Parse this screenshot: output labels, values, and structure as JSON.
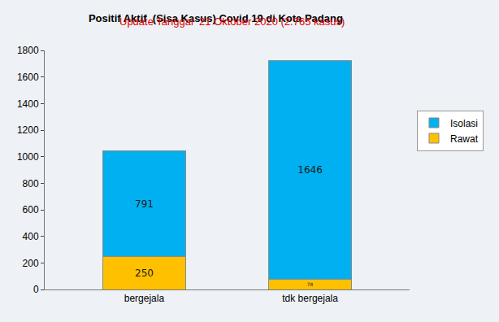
{
  "chart_data": {
    "type": "bar",
    "title": "Positif Aktif  (Sisa Kasus) Covid 19 di Kota Padang",
    "subtitle": "Update Tanggal  21 Oktober 2020 (2.765 kasus)",
    "categories": [
      "bergejala",
      "tdk bergejala"
    ],
    "series": [
      {
        "name": "Rawat",
        "color": "#ffc000",
        "values": [
          250,
          78
        ]
      },
      {
        "name": "Isolasi",
        "color": "#00b0f0",
        "values": [
          791,
          1646
        ]
      }
    ],
    "stacked": true,
    "data_labels": true,
    "ylim": [
      0,
      1800
    ],
    "yticks": [
      0,
      200,
      400,
      600,
      800,
      1000,
      1200,
      1400,
      1600,
      1800
    ],
    "grid": false,
    "legend": "right"
  }
}
